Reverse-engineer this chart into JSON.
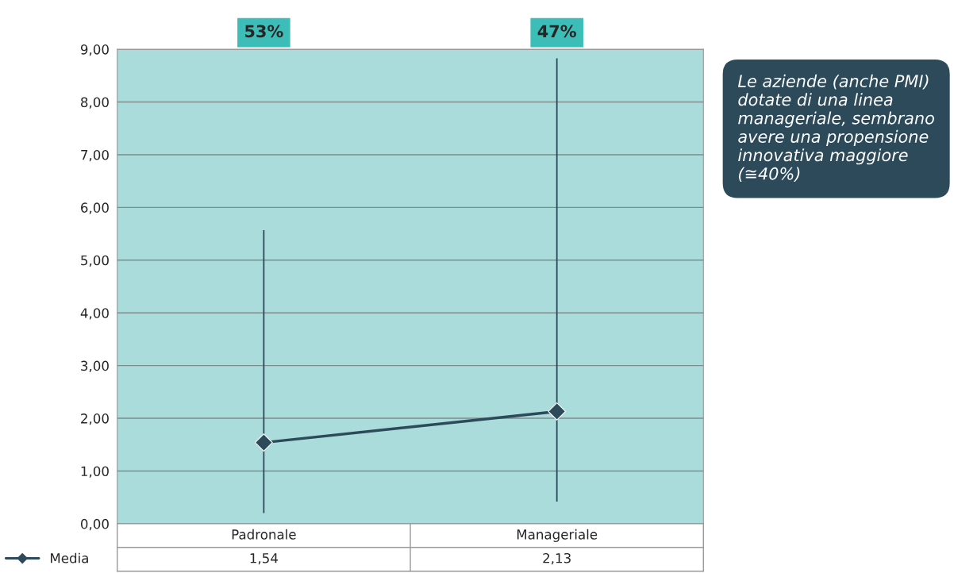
{
  "chart_data": {
    "type": "line",
    "categories": [
      "Padronale",
      "Manageriale"
    ],
    "series": [
      {
        "name": "Media",
        "color": "#2c4a5a",
        "values": [
          1.54,
          2.13
        ],
        "errors": [
          [
            0.2,
            5.57
          ],
          [
            0.42,
            8.83
          ]
        ]
      }
    ],
    "ylim": [
      0,
      9
    ],
    "yticks": [
      {
        "value": 0,
        "label": "0,00"
      },
      {
        "value": 1,
        "label": "1,00"
      },
      {
        "value": 2,
        "label": "2,00"
      },
      {
        "value": 3,
        "label": "3,00"
      },
      {
        "value": 4,
        "label": "4,00"
      },
      {
        "value": 5,
        "label": "5,00"
      },
      {
        "value": 6,
        "label": "6,00"
      },
      {
        "value": 7,
        "label": "7,00"
      },
      {
        "value": 8,
        "label": "8,00"
      },
      {
        "value": 9,
        "label": "9,00"
      }
    ],
    "grid": "y",
    "marker": "diamond",
    "line_style": "solid",
    "legend": "bottom left",
    "value_labels": [
      "1,54",
      "2,13"
    ],
    "annotations": [
      "53%",
      "47%",
      "Le aziende (anche PMI) dotate di una linea manageriale, sembrano avere una propensione innovativa maggiore (≅40%)"
    ]
  }
}
